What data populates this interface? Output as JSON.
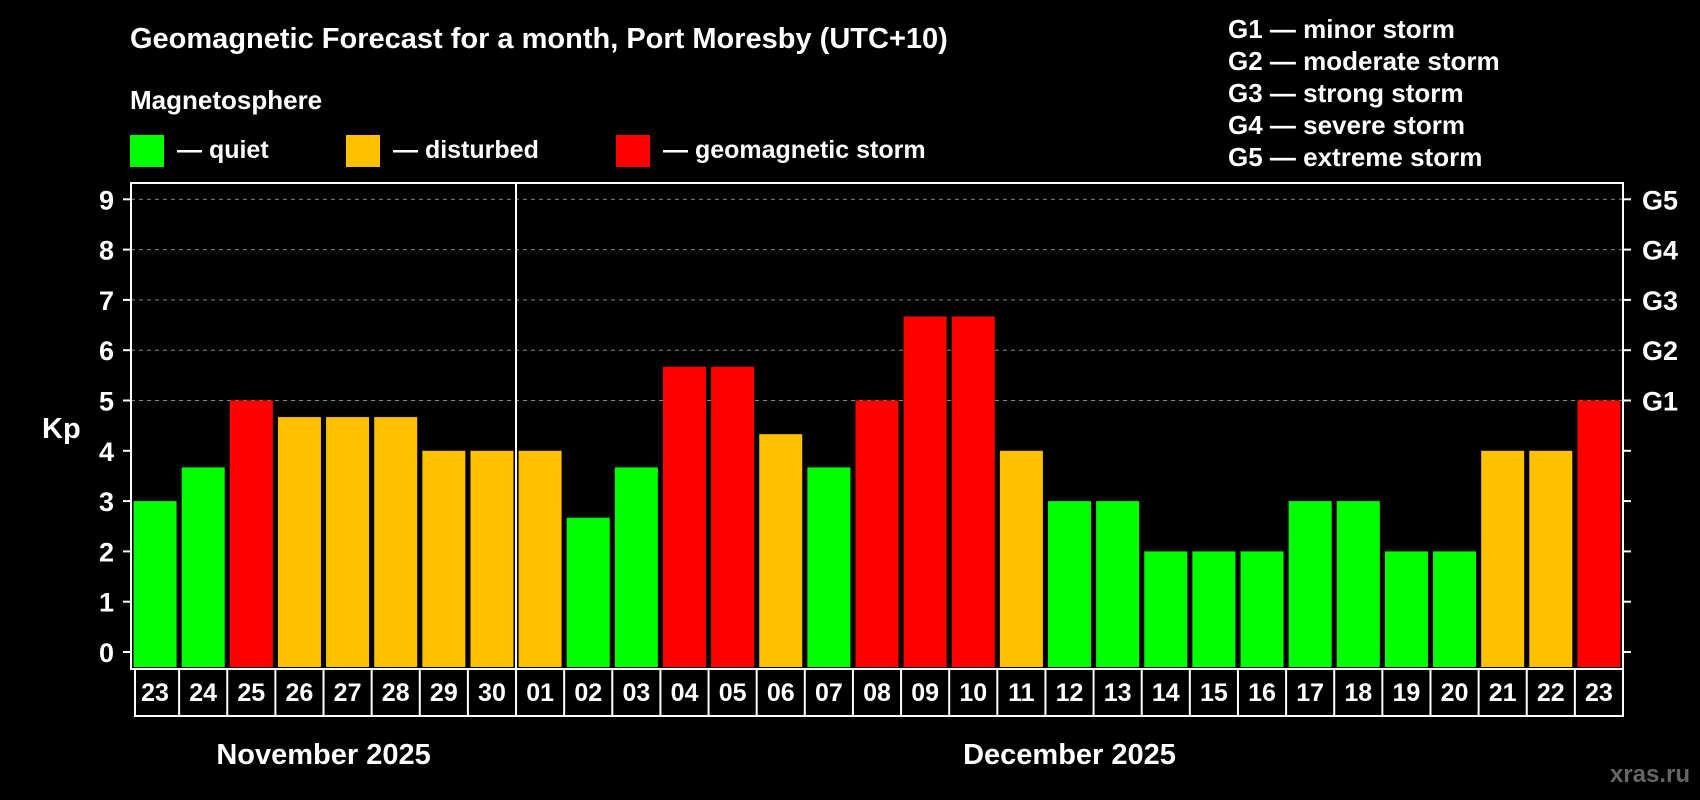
{
  "chart_data": {
    "type": "bar",
    "title": "Geomagnetic Forecast for a month, Port Moresby (UTC+10)",
    "ylabel": "Kp",
    "ylim": [
      0,
      9
    ],
    "yticks": [
      "0",
      "1",
      "2",
      "3",
      "4",
      "5",
      "6",
      "7",
      "8",
      "9"
    ],
    "grid": true,
    "right_axis_labels": [
      {
        "kp": 5,
        "label": "G1"
      },
      {
        "kp": 6,
        "label": "G2"
      },
      {
        "kp": 7,
        "label": "G3"
      },
      {
        "kp": 8,
        "label": "G4"
      },
      {
        "kp": 9,
        "label": "G5"
      }
    ],
    "categories": [
      "23",
      "24",
      "25",
      "26",
      "27",
      "28",
      "29",
      "30",
      "01",
      "02",
      "03",
      "04",
      "05",
      "06",
      "07",
      "08",
      "09",
      "10",
      "11",
      "12",
      "13",
      "14",
      "15",
      "16",
      "17",
      "18",
      "19",
      "20",
      "21",
      "22",
      "23"
    ],
    "values": [
      3,
      3.67,
      5,
      4.67,
      4.67,
      4.67,
      4,
      4,
      4,
      2.67,
      3.67,
      5.67,
      5.67,
      4.33,
      3.67,
      5,
      6.67,
      6.67,
      4,
      3,
      3,
      2,
      2,
      2,
      3,
      3,
      2,
      2,
      4,
      4,
      5
    ],
    "months": [
      {
        "label": "November 2025",
        "first_index": 0,
        "last_index": 7
      },
      {
        "label": "December 2025",
        "first_index": 8,
        "last_index": 30
      }
    ],
    "month_divider_after_index": 7,
    "magnetosphere_legend": {
      "heading": "Magnetosphere",
      "items": [
        {
          "label": "— quiet",
          "color": "#00ff00"
        },
        {
          "label": "— disturbed",
          "color": "#ffc000"
        },
        {
          "label": "— geomagnetic storm",
          "color": "#ff0000"
        }
      ]
    },
    "storm_legend": [
      "G1 — minor storm",
      "G2 — moderate storm",
      "G3 — strong storm",
      "G4 — severe storm",
      "G5 — extreme storm"
    ]
  },
  "colors": {
    "quiet": "#00ff00",
    "disturbed": "#ffc000",
    "storm": "#ff0000",
    "grid": "#888888"
  },
  "watermark": "xras.ru"
}
